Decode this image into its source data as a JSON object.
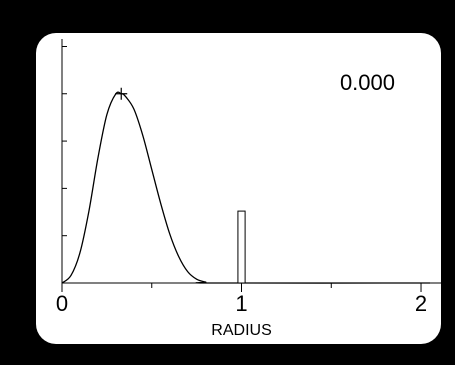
{
  "chart_data": {
    "type": "line",
    "title": "",
    "readout": "0.000",
    "xlabel": "RADIUS",
    "ylabel": "",
    "xlim": [
      0,
      2.05
    ],
    "ylim": [
      0,
      1.3
    ],
    "x_ticks": [
      0,
      0.5,
      1,
      1.5,
      2
    ],
    "x_tick_labels": [
      "0",
      "",
      "1",
      "",
      "2"
    ],
    "y_ticks": [
      0.25,
      0.5,
      0.75,
      1.0,
      1.25
    ],
    "series": [
      {
        "x": [
          0,
          0.05,
          0.1,
          0.15,
          0.2,
          0.25,
          0.3,
          0.33,
          0.35,
          0.4,
          0.45,
          0.5,
          0.55,
          0.6,
          0.65,
          0.7,
          0.75,
          0.8,
          0.85,
          2.05
        ],
        "y": [
          0,
          0.04,
          0.16,
          0.38,
          0.66,
          0.89,
          1.0,
          1.0,
          0.99,
          0.92,
          0.78,
          0.6,
          0.42,
          0.26,
          0.14,
          0.06,
          0.02,
          0.005,
          0,
          0
        ]
      }
    ],
    "bar": {
      "x_from": 0.98,
      "x_to": 1.02,
      "height": 0.38
    },
    "peak_marker": {
      "x": 0.33,
      "y": 1.0
    },
    "grid": false,
    "legend": "none",
    "colors": {
      "background": "#000000",
      "screen": "#ffffff",
      "ink": "#000000"
    }
  }
}
